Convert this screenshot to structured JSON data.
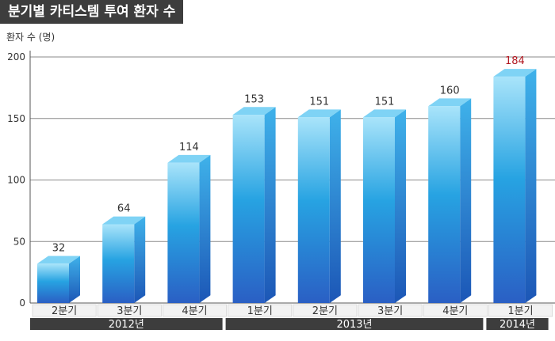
{
  "title": "분기별 카티스템 투여 환자 수",
  "chart_data": {
    "type": "bar",
    "title": "분기별 카티스템 투여 환자 수",
    "ylabel": "환자 수 (명)",
    "xlabel": "",
    "ylim": [
      0,
      200
    ],
    "yticks": [
      0,
      50,
      100,
      150,
      200
    ],
    "grid": true,
    "categories": [
      "2분기",
      "3분기",
      "4분기",
      "1분기",
      "2분기",
      "3분기",
      "4분기",
      "1분기"
    ],
    "values": [
      32,
      64,
      114,
      153,
      151,
      151,
      160,
      184
    ],
    "data_labels": [
      "32",
      "64",
      "114",
      "153",
      "151",
      "151",
      "160",
      "184"
    ],
    "highlight_index": 7,
    "groups": [
      {
        "label": "2012년",
        "start": 0,
        "end": 2
      },
      {
        "label": "2013년",
        "start": 3,
        "end": 6
      },
      {
        "label": "2014년",
        "start": 7,
        "end": 7
      }
    ],
    "colors": {
      "bar_light": "#a9e4fa",
      "bar_mid": "#27a3e2",
      "bar_dark": "#2a5fc4",
      "bar_top": "#7fd3f5",
      "bar_side": "#1f82cf",
      "highlight_label": "#b0161f",
      "year_band": "#3d3d3d",
      "grid": "#8a8a8a"
    }
  }
}
